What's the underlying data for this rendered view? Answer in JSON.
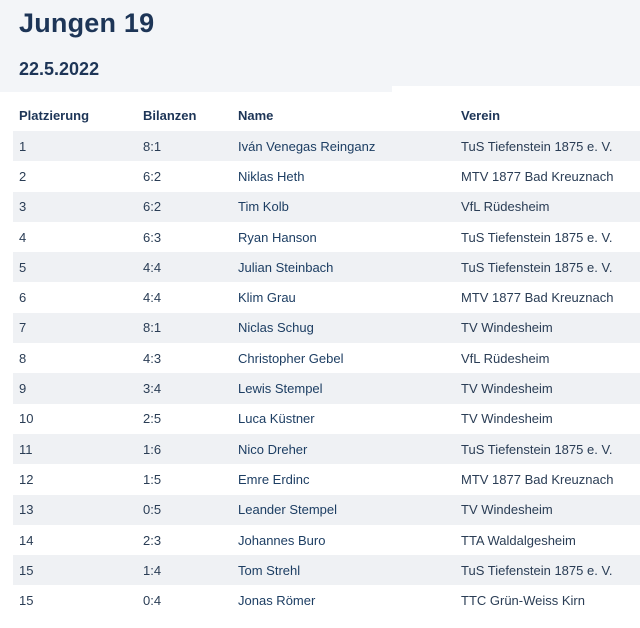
{
  "page": {
    "title": "Jungen 19",
    "date": "22.5.2022"
  },
  "table": {
    "headers": {
      "rank": "Platzierung",
      "record": "Bilanzen",
      "name": "Name",
      "club": "Verein"
    },
    "rows": [
      {
        "rank": "1",
        "record": "8:1",
        "name": "Iván Venegas Reinganz",
        "club": "TuS Tiefenstein 1875 e. V."
      },
      {
        "rank": "2",
        "record": "6:2",
        "name": "Niklas Heth",
        "club": "MTV 1877 Bad Kreuznach"
      },
      {
        "rank": "3",
        "record": "6:2",
        "name": "Tim Kolb",
        "club": "VfL Rüdesheim"
      },
      {
        "rank": "4",
        "record": "6:3",
        "name": "Ryan Hanson",
        "club": "TuS Tiefenstein 1875 e. V."
      },
      {
        "rank": "5",
        "record": "4:4",
        "name": "Julian Steinbach",
        "club": "TuS Tiefenstein 1875 e. V."
      },
      {
        "rank": "6",
        "record": "4:4",
        "name": "Klim Grau",
        "club": "MTV 1877 Bad Kreuznach"
      },
      {
        "rank": "7",
        "record": "8:1",
        "name": "Niclas Schug",
        "club": "TV Windesheim"
      },
      {
        "rank": "8",
        "record": "4:3",
        "name": "Christopher Gebel",
        "club": "VfL Rüdesheim"
      },
      {
        "rank": "9",
        "record": "3:4",
        "name": "Lewis Stempel",
        "club": "TV Windesheim"
      },
      {
        "rank": "10",
        "record": "2:5",
        "name": "Luca Küstner",
        "club": "TV Windesheim"
      },
      {
        "rank": "11",
        "record": "1:6",
        "name": "Nico Dreher",
        "club": "TuS Tiefenstein 1875 e. V."
      },
      {
        "rank": "12",
        "record": "1:5",
        "name": "Emre Erdinc",
        "club": "MTV 1877 Bad Kreuznach"
      },
      {
        "rank": "13",
        "record": "0:5",
        "name": "Leander Stempel",
        "club": "TV Windesheim"
      },
      {
        "rank": "14",
        "record": "2:3",
        "name": "Johannes Buro",
        "club": "TTA Waldalgesheim"
      },
      {
        "rank": "15",
        "record": "1:4",
        "name": "Tom Strehl",
        "club": "TuS Tiefenstein 1875 e. V."
      },
      {
        "rank": "15",
        "record": "0:4",
        "name": "Jonas Römer",
        "club": "TTC Grün-Weiss Kirn"
      }
    ]
  }
}
